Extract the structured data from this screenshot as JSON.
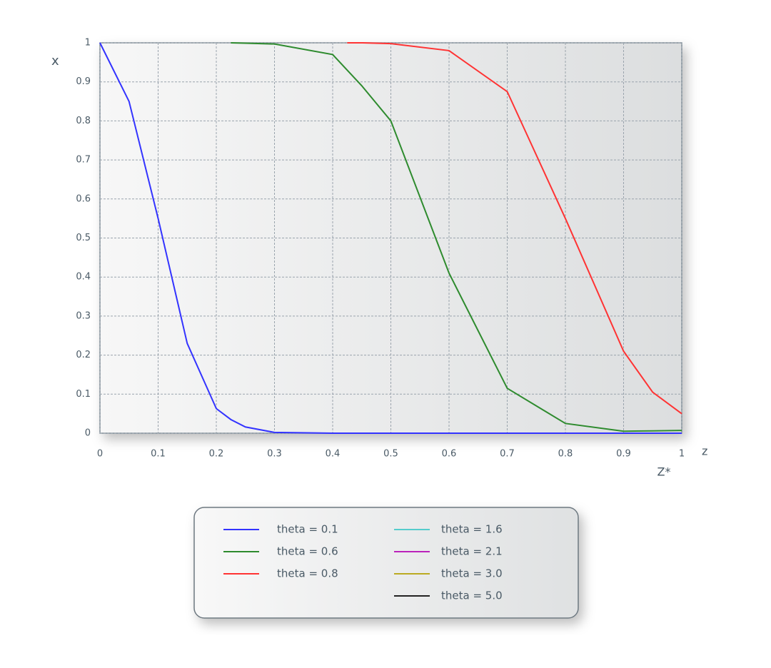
{
  "chart_data": {
    "type": "line",
    "y_label": "x",
    "x_label": "z",
    "x_sublabel": "Z*",
    "x": [
      0,
      0.05,
      0.1,
      0.15,
      0.2,
      0.225,
      0.25,
      0.3,
      0.4,
      0.425,
      0.45,
      0.5,
      0.6,
      0.7,
      0.8,
      0.9,
      0.95,
      1
    ],
    "series": [
      {
        "name": "theta = 0.1",
        "color": "#3333ff",
        "values": [
          1,
          0.85,
          0.55,
          0.23,
          0.063,
          0.035,
          0.016,
          0.002,
          0,
          0,
          0,
          0,
          0,
          0,
          0,
          0,
          0,
          0
        ]
      },
      {
        "name": "theta = 0.6",
        "color": "#2e8b2e",
        "values": [
          null,
          null,
          null,
          null,
          null,
          1,
          0.999,
          0.997,
          0.97,
          0.93,
          0.89,
          0.8,
          0.41,
          0.115,
          0.025,
          0.005,
          0.006,
          0.007
        ]
      },
      {
        "name": "theta = 0.8",
        "color": "#ff3333",
        "values": [
          null,
          null,
          null,
          null,
          null,
          null,
          null,
          null,
          null,
          1,
          1,
          0.998,
          0.98,
          0.875,
          0.55,
          0.21,
          0.105,
          0.05
        ]
      },
      {
        "name": "theta = 1.6",
        "color": "#55cccc",
        "values": [
          null,
          null,
          null,
          null,
          null,
          null,
          null,
          null,
          null,
          null,
          null,
          null,
          null,
          null,
          null,
          null,
          null,
          null
        ]
      },
      {
        "name": "theta = 2.1",
        "color": "#bb22bb",
        "values": [
          null,
          null,
          null,
          null,
          null,
          null,
          null,
          null,
          null,
          null,
          null,
          null,
          null,
          null,
          null,
          null,
          null,
          null
        ]
      },
      {
        "name": "theta = 3.0",
        "color": "#bbaa22",
        "values": [
          null,
          null,
          null,
          null,
          null,
          null,
          null,
          null,
          null,
          null,
          null,
          null,
          null,
          null,
          null,
          null,
          null,
          null
        ]
      },
      {
        "name": "theta = 5.0",
        "color": "#222222",
        "values": [
          null,
          null,
          null,
          null,
          null,
          null,
          null,
          null,
          null,
          null,
          null,
          null,
          null,
          null,
          null,
          null,
          null,
          null
        ]
      }
    ],
    "xlim": [
      0,
      1
    ],
    "ylim": [
      0,
      1
    ],
    "xticks": [
      0,
      0.1,
      0.2,
      0.3,
      0.4,
      0.5,
      0.6,
      0.7,
      0.8,
      0.9,
      1
    ],
    "yticks": [
      0,
      0.1,
      0.2,
      0.3,
      0.4,
      0.5,
      0.6,
      0.7,
      0.8,
      0.9,
      1
    ],
    "grid": true
  }
}
